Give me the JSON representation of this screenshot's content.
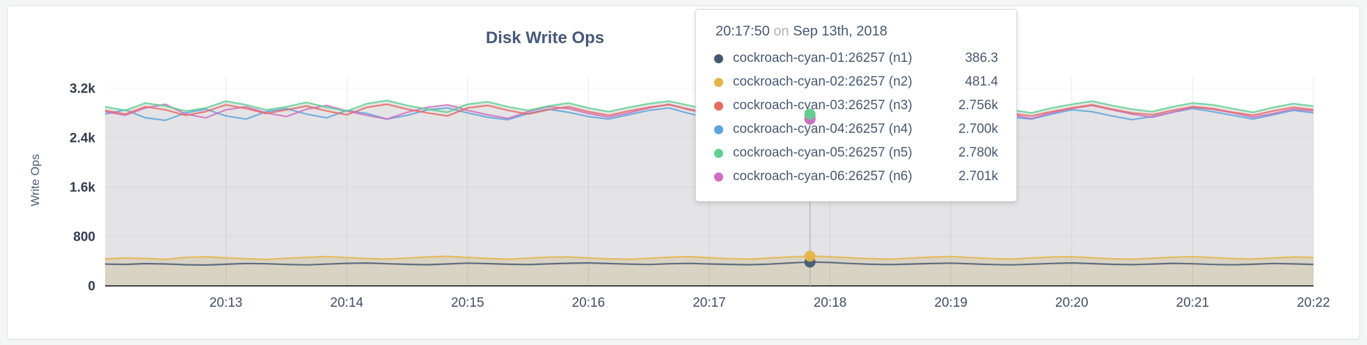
{
  "colors": {
    "page_bg": "#f4f5f5",
    "card_bg": "#ffffff",
    "axis_text": "#3f4c64",
    "title_text": "#46587a",
    "tooltip_text": "#475872",
    "tooltip_muted": "#b3b3b3",
    "hover_guideline": "#b8b8b8",
    "axis_line": "#404040"
  },
  "chart_data": {
    "type": "line",
    "title": "Disk Write Ops",
    "ylabel": "Write Ops",
    "xlabel": "",
    "x_axis": "time",
    "x_start_label": "20:12:00",
    "x_start": 0,
    "x_step": 10,
    "xlim": [
      0,
      600
    ],
    "ylim": [
      0,
      3400
    ],
    "grid": true,
    "legend_position": "hover-tooltip",
    "fill_high": "#e4e3e6",
    "fill_low": "#d9d3c4",
    "x_ticks": [
      {
        "t": 60,
        "label": "20:13"
      },
      {
        "t": 120,
        "label": "20:14"
      },
      {
        "t": 180,
        "label": "20:15"
      },
      {
        "t": 240,
        "label": "20:16"
      },
      {
        "t": 300,
        "label": "20:17"
      },
      {
        "t": 360,
        "label": "20:18"
      },
      {
        "t": 420,
        "label": "20:19"
      },
      {
        "t": 480,
        "label": "20:20"
      },
      {
        "t": 540,
        "label": "20:21"
      },
      {
        "t": 600,
        "label": "20:22"
      }
    ],
    "y_ticks": [
      {
        "v": 0,
        "label": "0"
      },
      {
        "v": 800,
        "label": "800"
      },
      {
        "v": 1600,
        "label": "1.6k"
      },
      {
        "v": 2400,
        "label": "2.4k"
      },
      {
        "v": 3200,
        "label": "3.2k"
      }
    ],
    "hover": {
      "t": 350,
      "time": "20:17:50",
      "date": "Sep 13th, 2018"
    },
    "series": [
      {
        "id": "n1",
        "name": "cockroach-cyan-01:26257 (n1)",
        "color": "#475872",
        "values": [
          352,
          348,
          360,
          355,
          342,
          338,
          350,
          362,
          358,
          347,
          340,
          352,
          365,
          370,
          358,
          349,
          342,
          355,
          368,
          360,
          350,
          344,
          356,
          366,
          372,
          361,
          352,
          346,
          358,
          364,
          355,
          348,
          342,
          352,
          370,
          386.3,
          378,
          362,
          350,
          344,
          353,
          361,
          368,
          357,
          346,
          340,
          351,
          363,
          372,
          360,
          349,
          343,
          354,
          365,
          358,
          347,
          341,
          350,
          362,
          356,
          348
        ]
      },
      {
        "id": "n2",
        "name": "cockroach-cyan-02:26257 (n2)",
        "color": "#e5b54a",
        "values": [
          438,
          452,
          445,
          430,
          460,
          472,
          455,
          440,
          428,
          446,
          462,
          475,
          458,
          442,
          435,
          450,
          468,
          478,
          460,
          445,
          432,
          448,
          465,
          470,
          452,
          438,
          430,
          447,
          463,
          474,
          456,
          441,
          433,
          450,
          470,
          481.4,
          472,
          455,
          440,
          432,
          449,
          466,
          476,
          458,
          443,
          434,
          451,
          467,
          473,
          455,
          439,
          431,
          448,
          464,
          475,
          457,
          442,
          436,
          452,
          468,
          460
        ]
      },
      {
        "id": "n3",
        "name": "cockroach-cyan-03:26257 (n3)",
        "color": "#e66a61",
        "values": [
          2840,
          2780,
          2900,
          2850,
          2760,
          2820,
          2930,
          2870,
          2790,
          2850,
          2910,
          2830,
          2770,
          2890,
          2940,
          2860,
          2800,
          2750,
          2880,
          2920,
          2840,
          2780,
          2850,
          2900,
          2820,
          2760,
          2830,
          2890,
          2930,
          2860,
          2790,
          2840,
          2880,
          2810,
          2770,
          2756,
          2850,
          2910,
          2870,
          2800,
          2760,
          2830,
          2890,
          2920,
          2850,
          2790,
          2750,
          2820,
          2880,
          2930,
          2860,
          2800,
          2770,
          2840,
          2900,
          2870,
          2810,
          2760,
          2830,
          2890,
          2850
        ]
      },
      {
        "id": "n4",
        "name": "cockroach-cyan-04:26257 (n4)",
        "color": "#5ea4d9",
        "values": [
          2780,
          2850,
          2720,
          2680,
          2800,
          2860,
          2750,
          2700,
          2820,
          2870,
          2780,
          2720,
          2840,
          2790,
          2700,
          2760,
          2850,
          2880,
          2800,
          2730,
          2690,
          2790,
          2860,
          2810,
          2740,
          2700,
          2770,
          2840,
          2880,
          2790,
          2720,
          2680,
          2760,
          2830,
          2770,
          2700,
          2790,
          2860,
          2810,
          2740,
          2690,
          2750,
          2830,
          2870,
          2800,
          2730,
          2700,
          2780,
          2850,
          2820,
          2750,
          2690,
          2740,
          2810,
          2870,
          2820,
          2760,
          2700,
          2770,
          2840,
          2800
        ]
      },
      {
        "id": "n5",
        "name": "cockroach-cyan-05:26257 (n5)",
        "color": "#5ed28f",
        "values": [
          2900,
          2840,
          2960,
          2910,
          2830,
          2880,
          2990,
          2930,
          2850,
          2900,
          2970,
          2890,
          2830,
          2950,
          3000,
          2920,
          2860,
          2810,
          2940,
          2980,
          2900,
          2840,
          2910,
          2960,
          2880,
          2820,
          2890,
          2950,
          2990,
          2920,
          2850,
          2900,
          2940,
          2870,
          2820,
          2780,
          2900,
          2970,
          2930,
          2860,
          2810,
          2890,
          2950,
          2980,
          2910,
          2850,
          2800,
          2880,
          2940,
          2990,
          2920,
          2860,
          2820,
          2900,
          2960,
          2930,
          2870,
          2810,
          2890,
          2950,
          2910
        ]
      },
      {
        "id": "n6",
        "name": "cockroach-cyan-06:26257 (n6)",
        "color": "#cf6ec0",
        "values": [
          2820,
          2760,
          2880,
          2940,
          2780,
          2720,
          2850,
          2900,
          2800,
          2740,
          2860,
          2920,
          2830,
          2760,
          2700,
          2810,
          2890,
          2930,
          2840,
          2770,
          2710,
          2820,
          2900,
          2870,
          2790,
          2730,
          2800,
          2880,
          2940,
          2850,
          2780,
          2720,
          2790,
          2860,
          2810,
          2701,
          2830,
          2900,
          2860,
          2790,
          2720,
          2780,
          2850,
          2910,
          2840,
          2770,
          2710,
          2800,
          2870,
          2920,
          2850,
          2780,
          2730,
          2810,
          2890,
          2860,
          2800,
          2730,
          2790,
          2860,
          2830
        ]
      }
    ]
  },
  "tooltip": {
    "time": "20:17:50",
    "on_word": "on",
    "date": "Sep 13th, 2018",
    "rows": [
      {
        "name": "cockroach-cyan-01:26257 (n1)",
        "value": "386.3",
        "color": "#475872"
      },
      {
        "name": "cockroach-cyan-02:26257 (n2)",
        "value": "481.4",
        "color": "#e5b54a"
      },
      {
        "name": "cockroach-cyan-03:26257 (n3)",
        "value": "2.756k",
        "color": "#e66a61"
      },
      {
        "name": "cockroach-cyan-04:26257 (n4)",
        "value": "2.700k",
        "color": "#5ea4d9"
      },
      {
        "name": "cockroach-cyan-05:26257 (n5)",
        "value": "2.780k",
        "color": "#5ed28f"
      },
      {
        "name": "cockroach-cyan-06:26257 (n6)",
        "value": "2.701k",
        "color": "#cf6ec0"
      }
    ]
  }
}
